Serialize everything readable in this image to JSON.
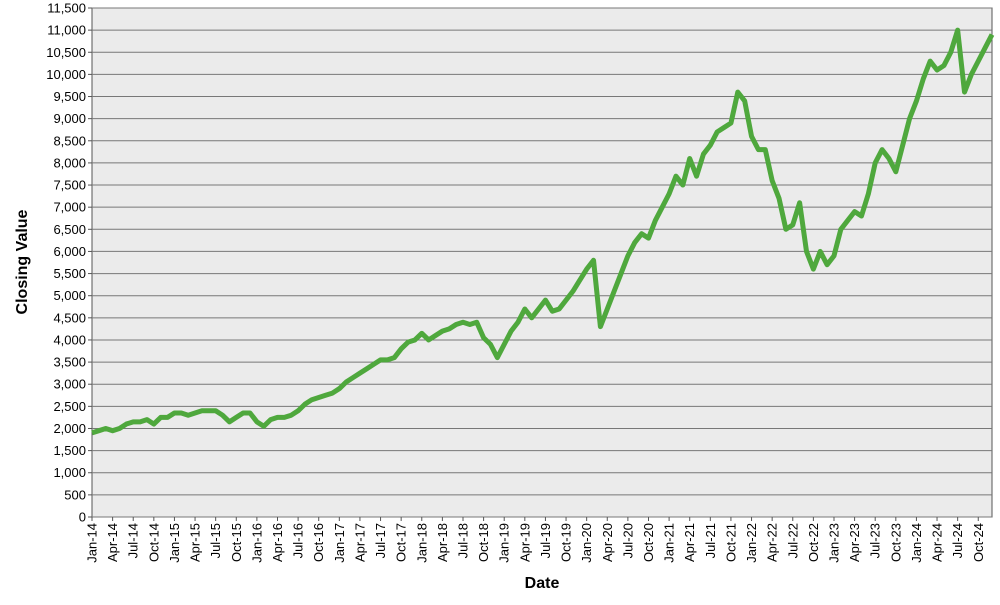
{
  "chart_data": {
    "type": "line",
    "x_title": "Date",
    "y_title": "Closing Value",
    "x": [
      "2014-01",
      "2014-02",
      "2014-03",
      "2014-04",
      "2014-05",
      "2014-06",
      "2014-07",
      "2014-08",
      "2014-09",
      "2014-10",
      "2014-11",
      "2014-12",
      "2015-01",
      "2015-02",
      "2015-03",
      "2015-04",
      "2015-05",
      "2015-06",
      "2015-07",
      "2015-08",
      "2015-09",
      "2015-10",
      "2015-11",
      "2015-12",
      "2016-01",
      "2016-02",
      "2016-03",
      "2016-04",
      "2016-05",
      "2016-06",
      "2016-07",
      "2016-08",
      "2016-09",
      "2016-10",
      "2016-11",
      "2016-12",
      "2017-01",
      "2017-02",
      "2017-03",
      "2017-04",
      "2017-05",
      "2017-06",
      "2017-07",
      "2017-08",
      "2017-09",
      "2017-10",
      "2017-11",
      "2017-12",
      "2018-01",
      "2018-02",
      "2018-03",
      "2018-04",
      "2018-05",
      "2018-06",
      "2018-07",
      "2018-08",
      "2018-09",
      "2018-10",
      "2018-11",
      "2018-12",
      "2019-01",
      "2019-02",
      "2019-03",
      "2019-04",
      "2019-05",
      "2019-06",
      "2019-07",
      "2019-08",
      "2019-09",
      "2019-10",
      "2019-11",
      "2019-12",
      "2020-01",
      "2020-02",
      "2020-03",
      "2020-04",
      "2020-05",
      "2020-06",
      "2020-07",
      "2020-08",
      "2020-09",
      "2020-10",
      "2020-11",
      "2020-12",
      "2021-01",
      "2021-02",
      "2021-03",
      "2021-04",
      "2021-05",
      "2021-06",
      "2021-07",
      "2021-08",
      "2021-09",
      "2021-10",
      "2021-11",
      "2021-12",
      "2022-01",
      "2022-02",
      "2022-03",
      "2022-04",
      "2022-05",
      "2022-06",
      "2022-07",
      "2022-08",
      "2022-09",
      "2022-10",
      "2022-11",
      "2022-12",
      "2023-01",
      "2023-02",
      "2023-03",
      "2023-04",
      "2023-05",
      "2023-06",
      "2023-07",
      "2023-08",
      "2023-09",
      "2023-10",
      "2023-11",
      "2023-12",
      "2024-01",
      "2024-02",
      "2024-03",
      "2024-04",
      "2024-05",
      "2024-06",
      "2024-07",
      "2024-08",
      "2024-09",
      "2024-10",
      "2024-11",
      "2024-12"
    ],
    "series": [
      {
        "name": "Closing Value",
        "color": "#4fa83d",
        "values": [
          1900,
          1950,
          2000,
          1950,
          2000,
          2100,
          2150,
          2150,
          2200,
          2100,
          2250,
          2250,
          2350,
          2350,
          2300,
          2350,
          2400,
          2400,
          2400,
          2300,
          2150,
          2250,
          2350,
          2350,
          2150,
          2050,
          2200,
          2250,
          2250,
          2300,
          2400,
          2550,
          2650,
          2700,
          2750,
          2800,
          2900,
          3050,
          3150,
          3250,
          3350,
          3450,
          3550,
          3550,
          3600,
          3800,
          3950,
          4000,
          4150,
          4000,
          4100,
          4200,
          4250,
          4350,
          4400,
          4350,
          4400,
          4050,
          3900,
          3600,
          3900,
          4200,
          4400,
          4700,
          4500,
          4700,
          4900,
          4650,
          4700,
          4900,
          5100,
          5350,
          5600,
          5800,
          4300,
          4700,
          5100,
          5500,
          5900,
          6200,
          6400,
          6300,
          6700,
          7000,
          7300,
          7700,
          7500,
          8100,
          7700,
          8200,
          8400,
          8700,
          8800,
          8900,
          9600,
          9400,
          8600,
          8300,
          8300,
          7600,
          7200,
          6500,
          6600,
          7100,
          6000,
          5600,
          6000,
          5700,
          5900,
          6500,
          6700,
          6900,
          6800,
          7300,
          8000,
          8300,
          8100,
          7800,
          8400,
          9000,
          9400,
          9900,
          10300,
          10100,
          10200,
          10500,
          11000,
          9600,
          10000,
          10300,
          10600,
          10900
        ]
      }
    ],
    "xlim": [
      "2014-01",
      "2024-12"
    ],
    "xticks": [
      {
        "value": "2014-01",
        "label": "Jan-14"
      },
      {
        "value": "2014-04",
        "label": "Apr-14"
      },
      {
        "value": "2014-07",
        "label": "Jul-14"
      },
      {
        "value": "2014-10",
        "label": "Oct-14"
      },
      {
        "value": "2015-01",
        "label": "Jan-15"
      },
      {
        "value": "2015-04",
        "label": "Apr-15"
      },
      {
        "value": "2015-07",
        "label": "Jul-15"
      },
      {
        "value": "2015-10",
        "label": "Oct-15"
      },
      {
        "value": "2016-01",
        "label": "Jan-16"
      },
      {
        "value": "2016-04",
        "label": "Apr-16"
      },
      {
        "value": "2016-07",
        "label": "Jul-16"
      },
      {
        "value": "2016-10",
        "label": "Oct-16"
      },
      {
        "value": "2017-01",
        "label": "Jan-17"
      },
      {
        "value": "2017-04",
        "label": "Apr-17"
      },
      {
        "value": "2017-07",
        "label": "Jul-17"
      },
      {
        "value": "2017-10",
        "label": "Oct-17"
      },
      {
        "value": "2018-01",
        "label": "Jan-18"
      },
      {
        "value": "2018-04",
        "label": "Apr-18"
      },
      {
        "value": "2018-07",
        "label": "Jul-18"
      },
      {
        "value": "2018-10",
        "label": "Oct-18"
      },
      {
        "value": "2019-01",
        "label": "Jan-19"
      },
      {
        "value": "2019-04",
        "label": "Apr-19"
      },
      {
        "value": "2019-07",
        "label": "Jul-19"
      },
      {
        "value": "2019-10",
        "label": "Oct-19"
      },
      {
        "value": "2020-01",
        "label": "Jan-20"
      },
      {
        "value": "2020-04",
        "label": "Apr-20"
      },
      {
        "value": "2020-07",
        "label": "Jul-20"
      },
      {
        "value": "2020-10",
        "label": "Oct-20"
      },
      {
        "value": "2021-01",
        "label": "Jan-21"
      },
      {
        "value": "2021-04",
        "label": "Apr-21"
      },
      {
        "value": "2021-07",
        "label": "Jul-21"
      },
      {
        "value": "2021-10",
        "label": "Oct-21"
      },
      {
        "value": "2022-01",
        "label": "Jan-22"
      },
      {
        "value": "2022-04",
        "label": "Apr-22"
      },
      {
        "value": "2022-07",
        "label": "Jul-22"
      },
      {
        "value": "2022-10",
        "label": "Oct-22"
      },
      {
        "value": "2023-01",
        "label": "Jan-23"
      },
      {
        "value": "2023-04",
        "label": "Apr-23"
      },
      {
        "value": "2023-07",
        "label": "Jul-23"
      },
      {
        "value": "2023-10",
        "label": "Oct-23"
      },
      {
        "value": "2024-01",
        "label": "Jan-24"
      },
      {
        "value": "2024-04",
        "label": "Apr-24"
      },
      {
        "value": "2024-07",
        "label": "Jul-24"
      },
      {
        "value": "2024-10",
        "label": "Oct-24"
      }
    ],
    "ylim": [
      0,
      11500
    ],
    "yticks": [
      0,
      500,
      {
        "value": 1000,
        "label": "1,000"
      },
      {
        "value": 1500,
        "label": "1,500"
      },
      {
        "value": 2000,
        "label": "2,000"
      },
      {
        "value": 2500,
        "label": "2,500"
      },
      {
        "value": 3000,
        "label": "3,000"
      },
      {
        "value": 3500,
        "label": "3,500"
      },
      {
        "value": 4000,
        "label": "4,000"
      },
      {
        "value": 4500,
        "label": "4,500"
      },
      {
        "value": 5000,
        "label": "5,000"
      },
      {
        "value": 5500,
        "label": "5,500"
      },
      {
        "value": 6000,
        "label": "6,000"
      },
      {
        "value": 6500,
        "label": "6,500"
      },
      {
        "value": 7000,
        "label": "7,000"
      },
      {
        "value": 7500,
        "label": "7,500"
      },
      {
        "value": 8000,
        "label": "8,000"
      },
      {
        "value": 8500,
        "label": "8,500"
      },
      {
        "value": 9000,
        "label": "9,000"
      },
      {
        "value": 9500,
        "label": "9,500"
      },
      {
        "value": 10000,
        "label": "10,000"
      },
      {
        "value": 10500,
        "label": "10,500"
      },
      {
        "value": 11000,
        "label": "11,000"
      },
      {
        "value": 11500,
        "label": "11,500"
      }
    ],
    "grid": true
  }
}
